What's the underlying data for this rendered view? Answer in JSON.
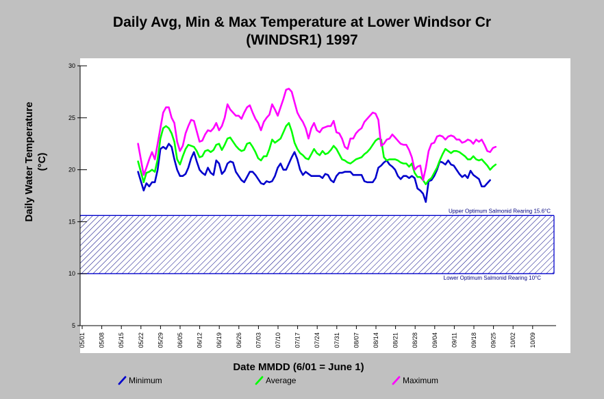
{
  "chart_data": {
    "type": "line",
    "title_line1": "Daily Avg, Min & Max Temperature at Lower Windsor Cr",
    "title_line2": "(WINDSR1) 1997",
    "xlabel": "Date MMDD (6/01 = June 1)",
    "ylabel_line1": "Daily Water Temperature",
    "ylabel_line2": "(°C)",
    "ylim": [
      5,
      30
    ],
    "yticks": [
      5,
      10,
      15,
      20,
      25,
      30
    ],
    "x_tick_labels": [
      "05/01",
      "05/08",
      "05/15",
      "05/22",
      "05/29",
      "06/05",
      "06/12",
      "06/19",
      "06/26",
      "07/03",
      "07/10",
      "07/17",
      "07/24",
      "07/31",
      "08/07",
      "08/14",
      "08/21",
      "08/28",
      "09/04",
      "09/11",
      "09/18",
      "09/25",
      "10/02",
      "10/09"
    ],
    "bands": [
      {
        "low": 10,
        "high": 15.6,
        "upper_label": "Upper Optimum Salmonid Rearing 15.6°C",
        "lower_label": "Lower Optimum Salmonid Rearing 10°C",
        "color": "#0000cc"
      }
    ],
    "series": [
      {
        "name": "Minimum",
        "color": "#0000cc",
        "values": [
          19.8,
          18.9,
          18.0,
          18.7,
          18.4,
          18.8,
          18.8,
          20.0,
          22.0,
          22.2,
          22.0,
          22.5,
          22.2,
          21.0,
          20.0,
          19.4,
          19.4,
          19.6,
          20.2,
          21.1,
          21.7,
          20.8,
          20.0,
          19.7,
          19.5,
          20.2,
          19.7,
          19.5,
          20.9,
          20.6,
          19.6,
          19.9,
          20.6,
          20.8,
          20.7,
          19.8,
          19.4,
          19.0,
          18.8,
          19.3,
          19.8,
          19.8,
          19.5,
          19.1,
          18.7,
          18.6,
          18.9,
          18.8,
          18.9,
          19.4,
          20.2,
          20.6,
          20.0,
          20.0,
          20.6,
          21.2,
          21.7,
          21.0,
          20.0,
          19.5,
          19.8,
          19.6,
          19.4,
          19.4,
          19.4,
          19.4,
          19.2,
          19.6,
          19.5,
          19.0,
          18.8,
          19.4,
          19.7,
          19.7,
          19.8,
          19.8,
          19.8,
          19.5,
          19.5,
          19.5,
          19.5,
          18.9,
          18.8,
          18.8,
          18.8,
          19.2,
          20.2,
          20.4,
          20.7,
          20.9,
          20.5,
          20.3,
          20.0,
          19.4,
          19.1,
          19.4,
          19.4,
          19.2,
          19.4,
          19.2,
          18.2,
          18.0,
          17.7,
          16.9,
          18.9,
          19.0,
          19.4,
          20.0,
          20.8,
          20.7,
          20.5,
          20.9,
          20.5,
          20.4,
          20.0,
          19.6,
          19.3,
          19.5,
          19.2,
          19.9,
          19.5,
          19.3,
          19.1,
          18.4,
          18.4,
          18.7,
          19.0
        ],
        "start_date": "05/21"
      },
      {
        "name": "Average",
        "color": "#00ff00",
        "values": [
          20.8,
          19.8,
          18.8,
          19.7,
          19.8,
          20.0,
          19.8,
          21.0,
          23.0,
          24.0,
          24.2,
          24.0,
          23.5,
          22.7,
          21.0,
          20.5,
          21.3,
          22.0,
          22.4,
          22.3,
          22.2,
          21.8,
          21.2,
          21.3,
          21.8,
          21.9,
          21.7,
          21.9,
          22.4,
          22.5,
          21.9,
          22.4,
          23.0,
          23.1,
          22.7,
          22.3,
          22.0,
          21.8,
          21.9,
          22.5,
          22.6,
          22.2,
          21.7,
          21.1,
          20.9,
          21.3,
          21.3,
          22.0,
          22.9,
          22.6,
          22.8,
          23.0,
          23.6,
          24.2,
          24.5,
          23.7,
          22.6,
          22.0,
          21.6,
          21.4,
          21.1,
          21.0,
          21.5,
          22.0,
          21.6,
          21.4,
          21.8,
          21.5,
          21.6,
          21.9,
          22.3,
          22.0,
          21.5,
          21.0,
          20.9,
          20.7,
          20.6,
          20.8,
          21.0,
          21.1,
          21.2,
          21.5,
          21.7,
          22.0,
          22.4,
          22.8,
          23.0,
          22.9,
          21.2,
          20.9,
          21.0,
          21.0,
          21.0,
          20.9,
          20.7,
          20.6,
          20.6,
          20.3,
          20.6,
          19.7,
          19.3,
          19.3,
          19.0,
          18.6,
          19.0,
          19.2,
          19.7,
          20.2,
          20.9,
          21.5,
          22.0,
          21.8,
          21.6,
          21.8,
          21.8,
          21.7,
          21.5,
          21.3,
          21.0,
          21.0,
          21.3,
          21.0,
          20.9,
          21.0,
          20.7,
          20.4,
          20.0,
          20.3,
          20.5
        ],
        "start_date": "05/21"
      },
      {
        "name": "Maximum",
        "color": "#ff00ff",
        "values": [
          22.5,
          21.0,
          19.5,
          20.2,
          21.0,
          21.7,
          21.0,
          22.5,
          24.0,
          25.5,
          26.0,
          26.0,
          25.0,
          24.5,
          22.7,
          21.8,
          22.3,
          23.5,
          24.2,
          24.8,
          24.7,
          23.7,
          22.7,
          22.8,
          23.4,
          23.8,
          23.7,
          24.0,
          24.5,
          23.8,
          24.2,
          25.0,
          26.3,
          25.8,
          25.5,
          25.2,
          25.2,
          24.9,
          25.5,
          26.0,
          26.2,
          25.5,
          24.9,
          24.5,
          23.8,
          24.6,
          25.0,
          25.3,
          26.3,
          25.8,
          25.2,
          26.0,
          26.8,
          27.7,
          27.8,
          27.5,
          26.5,
          25.5,
          25.0,
          24.6,
          24.0,
          23.0,
          24.0,
          24.5,
          23.8,
          23.6,
          24.0,
          24.1,
          24.2,
          24.2,
          24.7,
          23.6,
          23.5,
          23.0,
          22.2,
          22.0,
          23.0,
          23.0,
          23.5,
          23.8,
          24.0,
          24.6,
          24.9,
          25.2,
          25.5,
          25.4,
          24.8,
          22.3,
          22.5,
          22.9,
          23.0,
          23.4,
          23.1,
          22.8,
          22.5,
          22.4,
          22.4,
          21.9,
          21.2,
          20.0,
          20.3,
          20.4,
          19.0,
          20.2,
          21.8,
          22.5,
          22.6,
          23.2,
          23.3,
          23.2,
          22.9,
          23.2,
          23.3,
          23.2,
          22.9,
          22.9,
          22.6,
          22.7,
          22.9,
          22.8,
          22.5,
          22.9,
          22.7,
          22.9,
          22.4,
          21.8,
          21.7,
          22.1,
          22.2
        ],
        "start_date": "05/21"
      }
    ]
  },
  "legend": {
    "items": [
      {
        "label": "Minimum",
        "color": "#0000cc"
      },
      {
        "label": "Average",
        "color": "#00ff00"
      },
      {
        "label": "Maximum",
        "color": "#ff00ff"
      }
    ]
  }
}
